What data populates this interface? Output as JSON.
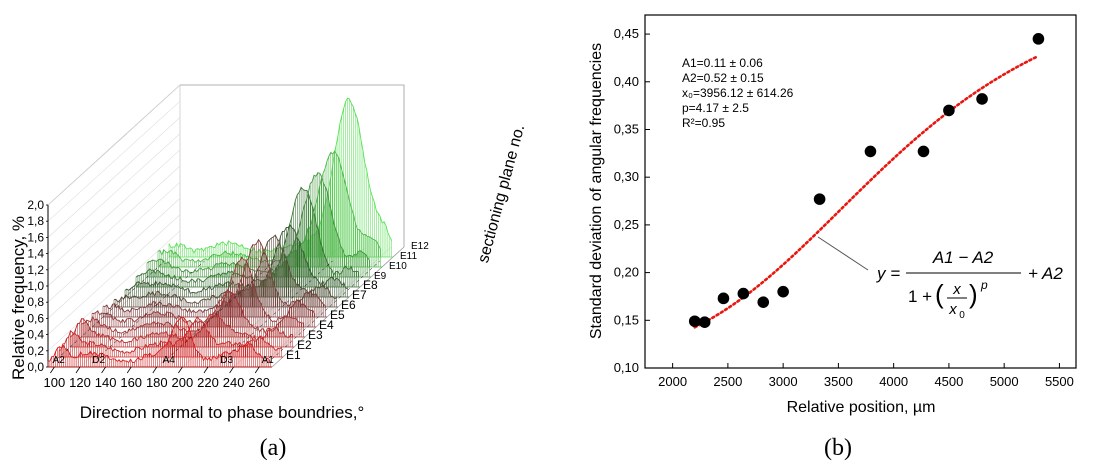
{
  "panels": {
    "a": {
      "caption": "(a)",
      "ylabel": "Relative frequency, %",
      "xlabel": "Direction normal to phase boundries,°",
      "depth_label": "sectioning plane no.",
      "yticks": [
        "0,0",
        "0,2",
        "0,4",
        "0,6",
        "0,8",
        "1,0",
        "1,2",
        "1,4",
        "1,6",
        "1,8",
        "2,0"
      ],
      "xticks": [
        "100",
        "120",
        "140",
        "160",
        "180",
        "200",
        "220",
        "240",
        "260"
      ],
      "zticks": [
        "E1",
        "E2",
        "E3",
        "E4",
        "E5",
        "E6",
        "E7",
        "E8",
        "E9",
        "E10",
        "E11",
        "E12"
      ],
      "markers": [
        "A2",
        "D2",
        "A4",
        "D3",
        "A1"
      ]
    },
    "b": {
      "caption": "(b)",
      "fit_params": [
        "A1=0.11 ± 0.06",
        "A2=0.52 ± 0.15",
        "x₀=3956.12 ± 614.26",
        "p=4.17 ± 2.5",
        "R²=0.95"
      ],
      "equation": {
        "lhs": "y =",
        "num": "A1 − A2",
        "den_pre": "1 +",
        "frac_num": "x",
        "frac_den": "x",
        "frac_den_sub": "0",
        "exp": "p",
        "tail": "+ A2"
      }
    }
  },
  "chart_data": [
    {
      "type": "area",
      "title": "",
      "ylabel": "Relative frequency, %",
      "xlabel": "Direction normal to phase boundries,°",
      "zlabel": "sectioning plane no.",
      "xlim": [
        95,
        270
      ],
      "ylim": [
        0,
        2.0
      ],
      "categories_z": [
        "E1",
        "E2",
        "E3",
        "E4",
        "E5",
        "E6",
        "E7",
        "E8",
        "E9",
        "E10",
        "E11",
        "E12"
      ],
      "colors": [
        "#d32020",
        "#c72a2a",
        "#b83030",
        "#a33535",
        "#8f3a3a",
        "#7e3e3e",
        "#5a4a3a",
        "#3c5a35",
        "#3a7536",
        "#43963f",
        "#4fba4a",
        "#5ee05a"
      ],
      "peak_values_approx": [
        0.65,
        0.55,
        0.45,
        0.55,
        0.85,
        1.0,
        0.95,
        0.9,
        1.2,
        1.3,
        1.5,
        2.0
      ]
    },
    {
      "type": "scatter",
      "title": "",
      "xlabel": "Relative position, µm",
      "ylabel": "Standard deviation of angular frequencies",
      "xlim": [
        1750,
        5650
      ],
      "ylim": [
        0.1,
        0.47
      ],
      "xticks": [
        2000,
        2500,
        3000,
        3500,
        4000,
        4500,
        5000,
        5500
      ],
      "yticks": [
        0.1,
        0.15,
        0.2,
        0.25,
        0.3,
        0.35,
        0.4,
        0.45
      ],
      "ytick_labels": [
        "0,10",
        "0,15",
        "0,20",
        "0,25",
        "0,30",
        "0,35",
        "0,40",
        "0,45"
      ],
      "xtick_labels": [
        "2000",
        "2500",
        "3000",
        "3500",
        "4000",
        "4500",
        "5000",
        "5500"
      ],
      "series": [
        {
          "x": [
            2200,
            2290,
            2460,
            2640,
            2820,
            3000,
            3330,
            3790,
            4270,
            4500,
            4800,
            5310
          ],
          "y": [
            0.149,
            0.148,
            0.173,
            0.178,
            0.169,
            0.18,
            0.277,
            0.327,
            0.327,
            0.37,
            0.382,
            0.445
          ],
          "color": "#000000"
        }
      ],
      "fit": {
        "model": "logistic",
        "A1": 0.11,
        "A2": 0.52,
        "x0": 3956.12,
        "p": 4.17,
        "x_range": [
          2200,
          5310
        ],
        "color": "#e8160f"
      }
    }
  ]
}
